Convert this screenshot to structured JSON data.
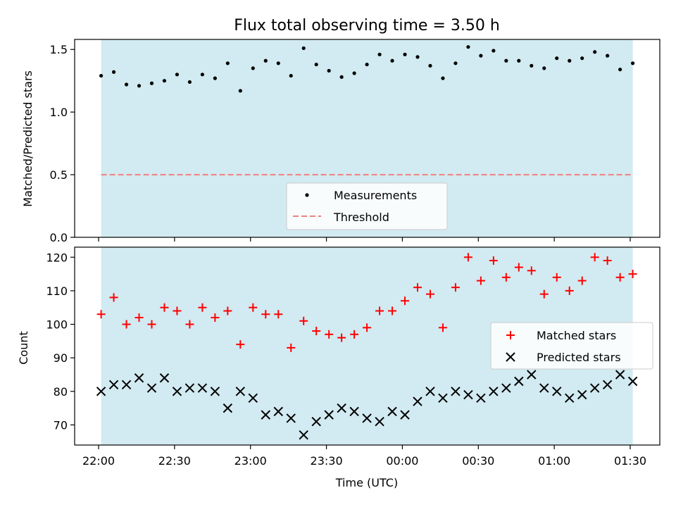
{
  "chart_data": [
    {
      "type": "scatter",
      "title": "Flux total observing time = 3.50 h",
      "ylabel": "Matched/Predicted stars",
      "xlabel": "",
      "ylim": [
        0,
        1.58
      ],
      "y_ticks": [
        "0.0",
        "0.5",
        "1.0",
        "1.5"
      ],
      "x_tick_labels": [
        "22:00",
        "22:30",
        "23:00",
        "23:30",
        "00:00",
        "00:30",
        "01:00",
        "01:30"
      ],
      "x_times": [
        "22:01",
        "22:06",
        "22:11",
        "22:16",
        "22:21",
        "22:26",
        "22:31",
        "22:36",
        "22:41",
        "22:46",
        "22:51",
        "22:56",
        "23:01",
        "23:06",
        "23:11",
        "23:16",
        "23:21",
        "23:26",
        "23:31",
        "23:36",
        "23:41",
        "23:46",
        "23:51",
        "23:56",
        "00:01",
        "00:06",
        "00:11",
        "00:16",
        "00:21",
        "00:26",
        "00:31",
        "00:36",
        "00:41",
        "00:46",
        "00:51",
        "00:56",
        "01:01",
        "01:06",
        "01:11",
        "01:16",
        "01:21",
        "01:26",
        "01:31"
      ],
      "shaded_span": [
        "22:01",
        "01:31"
      ],
      "series": [
        {
          "name": "Measurements",
          "marker": "dot",
          "color": "#000000",
          "values": [
            1.29,
            1.32,
            1.22,
            1.21,
            1.23,
            1.25,
            1.3,
            1.24,
            1.3,
            1.27,
            1.39,
            1.17,
            1.35,
            1.41,
            1.39,
            1.29,
            1.51,
            1.38,
            1.33,
            1.28,
            1.31,
            1.38,
            1.46,
            1.41,
            1.46,
            1.44,
            1.37,
            1.27,
            1.39,
            1.52,
            1.45,
            1.49,
            1.41,
            1.41,
            1.37,
            1.35,
            1.43,
            1.41,
            1.43,
            1.48,
            1.45,
            1.34,
            1.39
          ]
        },
        {
          "name": "Threshold",
          "marker": "dashed-line",
          "color": "#f08080",
          "constant": 0.5
        }
      ],
      "legend_position": "lower-center"
    },
    {
      "type": "scatter",
      "title": "",
      "ylabel": "Count",
      "xlabel": "Time (UTC)",
      "ylim": [
        64,
        123
      ],
      "y_ticks": [
        "70",
        "80",
        "90",
        "100",
        "110",
        "120"
      ],
      "x_tick_labels": [
        "22:00",
        "22:30",
        "23:00",
        "23:30",
        "00:00",
        "00:30",
        "01:00",
        "01:30"
      ],
      "shaded_span": [
        "22:01",
        "01:31"
      ],
      "series": [
        {
          "name": "Matched stars",
          "marker": "plus",
          "color": "#ff0000",
          "values": [
            103,
            108,
            100,
            102,
            100,
            105,
            104,
            100,
            105,
            102,
            104,
            94,
            105,
            103,
            103,
            93,
            101,
            98,
            97,
            96,
            97,
            99,
            104,
            104,
            107,
            111,
            109,
            99,
            111,
            120,
            113,
            119,
            114,
            117,
            116,
            109,
            114,
            110,
            113,
            120,
            119,
            114,
            115
          ]
        },
        {
          "name": "Predicted stars",
          "marker": "x",
          "color": "#000000",
          "values": [
            80,
            82,
            82,
            84,
            81,
            84,
            80,
            81,
            81,
            80,
            75,
            80,
            78,
            73,
            74,
            72,
            67,
            71,
            73,
            75,
            74,
            72,
            71,
            74,
            73,
            77,
            80,
            78,
            80,
            79,
            78,
            80,
            81,
            83,
            85,
            81,
            80,
            78,
            79,
            81,
            82,
            85,
            83
          ]
        }
      ],
      "legend_position": "right"
    }
  ],
  "colors": {
    "shade": "#add8e6",
    "frame": "#000000"
  }
}
